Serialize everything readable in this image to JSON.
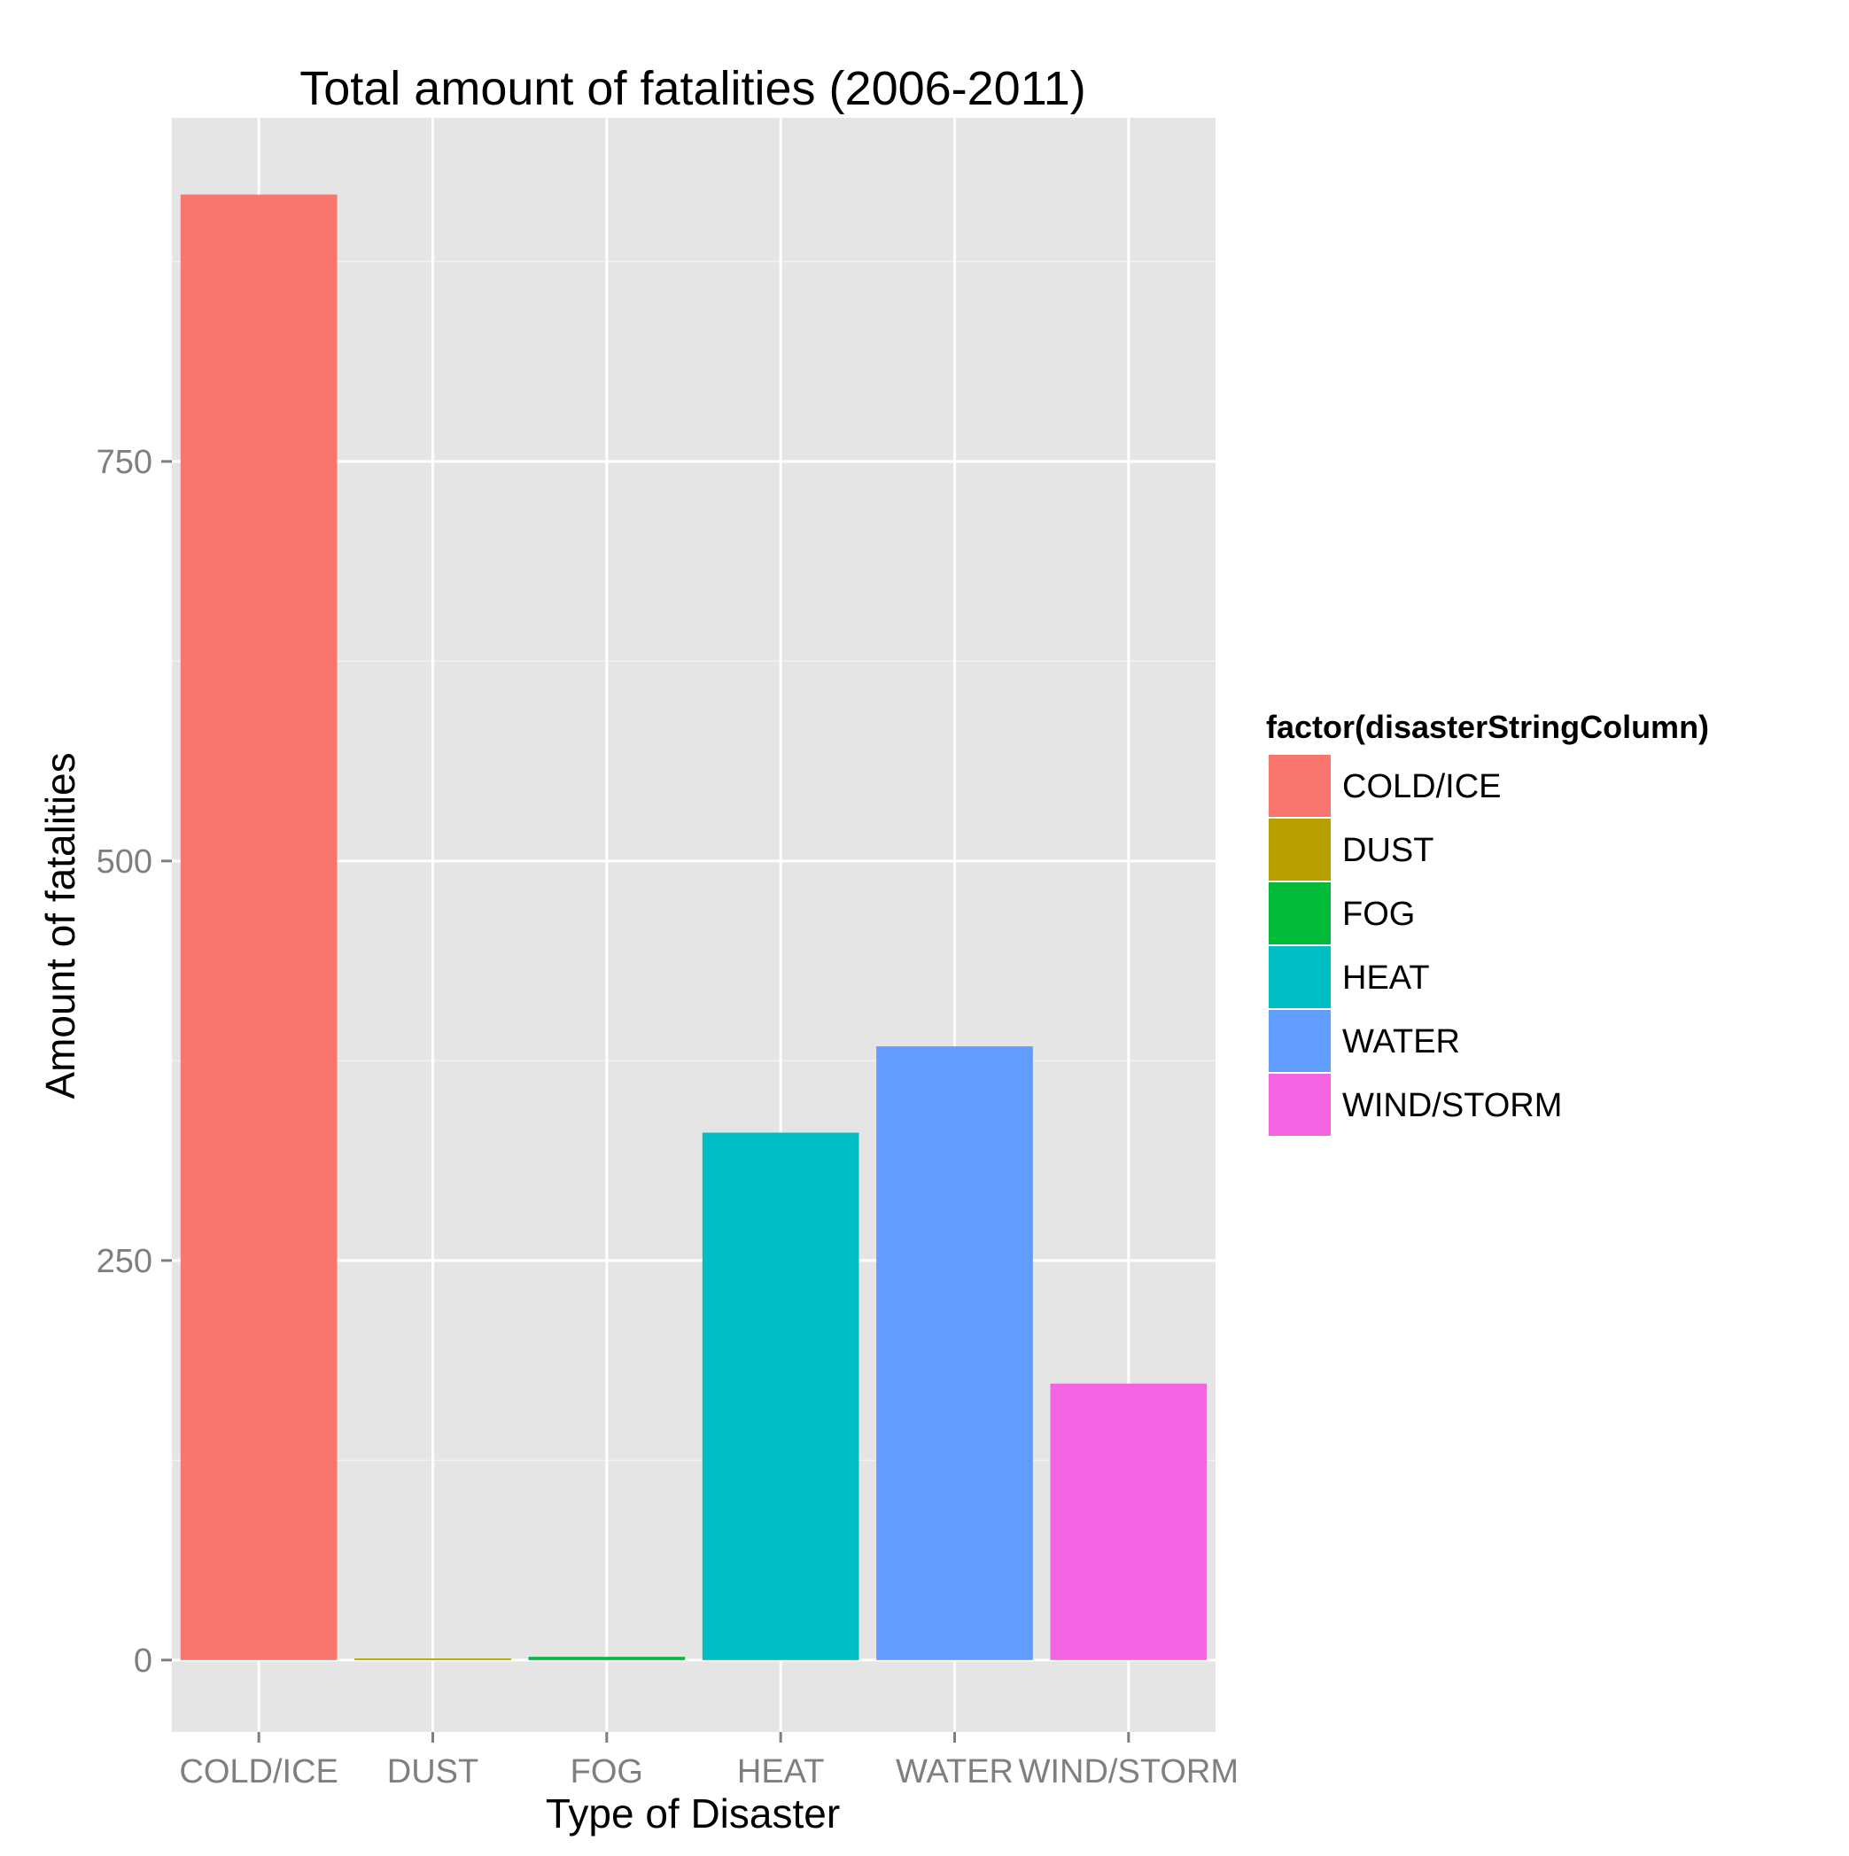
{
  "chart_data": {
    "type": "bar",
    "title": "Total amount of fatalities (2006-2011)",
    "xlabel": "Type of Disaster",
    "ylabel": "Amount of fatalities",
    "categories": [
      "COLD/ICE",
      "DUST",
      "FOG",
      "HEAT",
      "WATER",
      "WIND/STORM"
    ],
    "values": [
      917,
      1,
      2,
      330,
      384,
      173
    ],
    "colors": [
      "#F8766D",
      "#B79F00",
      "#00BA38",
      "#00BFC4",
      "#619CFF",
      "#F564E3"
    ],
    "ylim": [
      -45,
      965
    ],
    "yticks": [
      0,
      250,
      500,
      750
    ],
    "yticks_labels": [
      "0",
      "250",
      "500",
      "750"
    ],
    "grid": true,
    "legend": {
      "title": "factor(disasterStringColumn)",
      "position": "right",
      "entries": [
        "COLD/ICE",
        "DUST",
        "FOG",
        "HEAT",
        "WATER",
        "WIND/STORM"
      ]
    },
    "panel_color": "#E5E5E5"
  }
}
